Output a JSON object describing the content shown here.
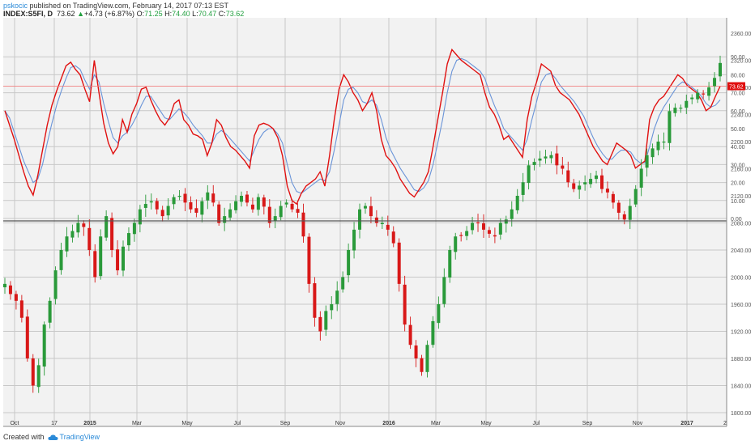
{
  "header": {
    "user": "pskocic",
    "published": " published on TradingView.com, February 14, 2017 07:13 EST",
    "symbol": "INDEX:S5FI, D",
    "last": "73.62",
    "arrow": "▲",
    "change": "+4.73 (+6.87%)",
    "o_label": "O:",
    "o": "71.25",
    "h_label": "H:",
    "h": "74.40",
    "l_label": "L:",
    "l": "70.47",
    "c_label": "C:",
    "c": "73.62"
  },
  "footer": {
    "created": "Created with",
    "brand": "TradingView"
  },
  "colors": {
    "osc": "#e01010",
    "ma": "#6a94d8",
    "up": "#2a9a3a",
    "down": "#d81818",
    "grid": "#c8c8c8",
    "bg": "#f2f2f2"
  },
  "chart_data": [
    {
      "type": "line",
      "name": "oscillator",
      "ylim": [
        0,
        100
      ],
      "yticks": [
        "0.00",
        "10.00",
        "20.00",
        "30.00",
        "40.00",
        "50.00",
        "60.00",
        "70.00",
        "80.00",
        "90.00"
      ],
      "last_value_label": "73.62",
      "series": [
        {
          "values": [
            60,
            52,
            44,
            35,
            26,
            18,
            13,
            24,
            38,
            52,
            63,
            71,
            78,
            85,
            87,
            83,
            80,
            72,
            65,
            88,
            70,
            53,
            42,
            36,
            40,
            55,
            48,
            58,
            64,
            72,
            73,
            66,
            60,
            55,
            52,
            56,
            64,
            66,
            55,
            52,
            47,
            46,
            44,
            35,
            42,
            55,
            52,
            45,
            40,
            38,
            35,
            32,
            28,
            46,
            52,
            53,
            52,
            50,
            45,
            35,
            18,
            10,
            8,
            14,
            18,
            20,
            22,
            26,
            18,
            35,
            55,
            72,
            80,
            76,
            70,
            66,
            60,
            64,
            70,
            60,
            44,
            35,
            32,
            28,
            22,
            18,
            14,
            12,
            16,
            20,
            26,
            40,
            55,
            70,
            86,
            94,
            91,
            88,
            86,
            84,
            82,
            80,
            70,
            62,
            58,
            52,
            44,
            46,
            42,
            38,
            34,
            55,
            68,
            76,
            86,
            84,
            82,
            74,
            70,
            68,
            66,
            62,
            58,
            52,
            46,
            40,
            36,
            32,
            30,
            36,
            42,
            40,
            38,
            35,
            28,
            30,
            32,
            55,
            62,
            66,
            68,
            72,
            76,
            80,
            78,
            74,
            72,
            70,
            66,
            60,
            62,
            68,
            73.62
          ],
          "ma": [
            60,
            56,
            48,
            40,
            32,
            26,
            20,
            22,
            30,
            42,
            53,
            63,
            71,
            78,
            84,
            85,
            83,
            77,
            72,
            80,
            76,
            64,
            54,
            45,
            42,
            46,
            48,
            52,
            57,
            63,
            68,
            68,
            64,
            60,
            56,
            55,
            58,
            61,
            59,
            56,
            52,
            49,
            46,
            42,
            42,
            47,
            49,
            47,
            44,
            41,
            38,
            35,
            32,
            38,
            44,
            48,
            50,
            50,
            47,
            42,
            30,
            20,
            15,
            14,
            16,
            18,
            20,
            22,
            21,
            26,
            38,
            52,
            66,
            72,
            73,
            70,
            65,
            64,
            66,
            63,
            55,
            45,
            38,
            33,
            28,
            24,
            20,
            16,
            15,
            17,
            21,
            30,
            42,
            55,
            70,
            82,
            88,
            89,
            88,
            86,
            84,
            82,
            78,
            70,
            63,
            57,
            50,
            47,
            44,
            41,
            38,
            44,
            55,
            65,
            76,
            80,
            81,
            78,
            74,
            71,
            68,
            65,
            61,
            57,
            51,
            45,
            40,
            36,
            33,
            33,
            36,
            38,
            38,
            37,
            33,
            31,
            31,
            40,
            50,
            57,
            62,
            66,
            70,
            74,
            76,
            75,
            73,
            71,
            68,
            64,
            62,
            63,
            66
          ]
        }
      ]
    },
    {
      "type": "candlestick",
      "name": "S&P 500 price",
      "ylim": [
        1800,
        2340
      ],
      "yticks": [
        "1800.00",
        "1840.00",
        "1880.00",
        "1920.00",
        "1960.00",
        "2000.00",
        "2040.00",
        "2080.00",
        "2120.00",
        "2160.00",
        "2200.00",
        "2240.00",
        "2280.00",
        "2320.00",
        "2360.00"
      ],
      "x_tick_labels": [
        "Oct",
        "17",
        "2015",
        "Mar",
        "May",
        "Jul",
        "Sep",
        "Nov",
        "2016",
        "Mar",
        "May",
        "Jul",
        "Sep",
        "Nov",
        "2017",
        "2"
      ],
      "closes": [
        1990,
        1975,
        1965,
        1940,
        1880,
        1840,
        1870,
        1930,
        1965,
        2010,
        2040,
        2060,
        2068,
        2080,
        2074,
        2040,
        2000,
        2060,
        2090,
        2040,
        2010,
        2045,
        2065,
        2080,
        2100,
        2108,
        2112,
        2100,
        2090,
        2105,
        2118,
        2120,
        2110,
        2100,
        2095,
        2112,
        2125,
        2110,
        2080,
        2090,
        2100,
        2112,
        2120,
        2110,
        2100,
        2118,
        2104,
        2080,
        2090,
        2105,
        2110,
        2100,
        2095,
        2060,
        1990,
        1940,
        1920,
        1950,
        1960,
        1980,
        2000,
        2040,
        2070,
        2100,
        2105,
        2090,
        2080,
        2080,
        2070,
        2050,
        1990,
        1930,
        1900,
        1880,
        1860,
        1900,
        1935,
        1960,
        2000,
        2040,
        2060,
        2062,
        2068,
        2080,
        2080,
        2070,
        2064,
        2060,
        2080,
        2085,
        2100,
        2120,
        2140,
        2165,
        2170,
        2175,
        2178,
        2180,
        2165,
        2160,
        2140,
        2130,
        2135,
        2140,
        2145,
        2150,
        2130,
        2125,
        2110,
        2095,
        2085,
        2105,
        2130,
        2160,
        2180,
        2190,
        2200,
        2200,
        2245,
        2250,
        2250,
        2260,
        2265,
        2272,
        2270,
        2280,
        2294,
        2316
      ]
    }
  ]
}
